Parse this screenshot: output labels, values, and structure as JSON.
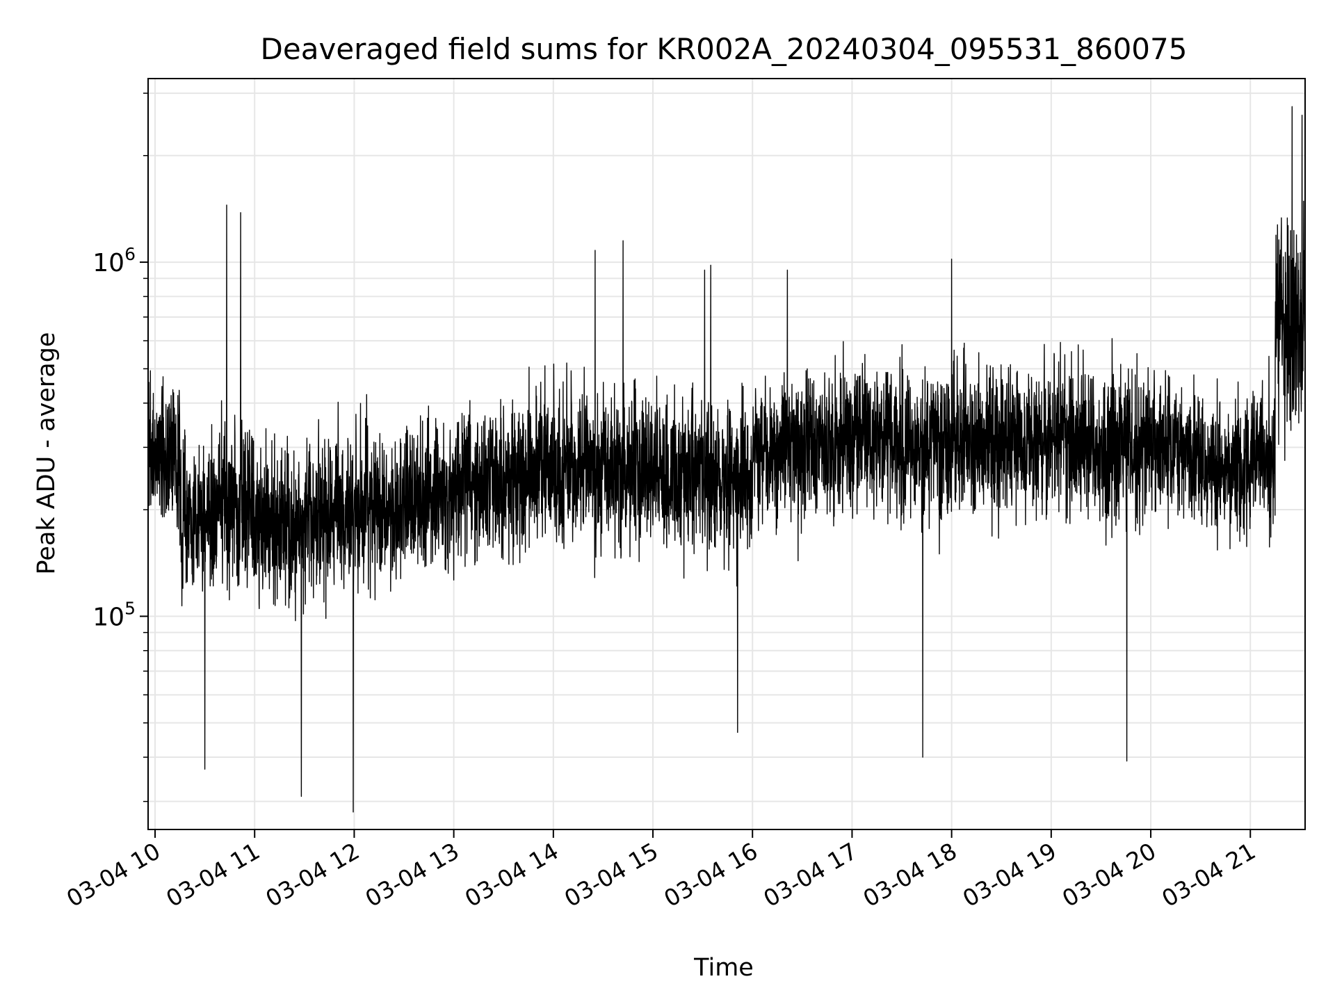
{
  "chart_data": {
    "type": "line",
    "title": "Deaveraged field sums for KR002A_20240304_095531_860075",
    "xlabel": "Time",
    "ylabel": "Peak ADU - average",
    "x_ticks": [
      "03-04 10",
      "03-04 11",
      "03-04 12",
      "03-04 13",
      "03-04 14",
      "03-04 15",
      "03-04 16",
      "03-04 17",
      "03-04 18",
      "03-04 19",
      "03-04 20",
      "03-04 21"
    ],
    "x_tick_hours": [
      10,
      11,
      12,
      13,
      14,
      15,
      16,
      17,
      18,
      19,
      20,
      21
    ],
    "xlim_hours": [
      9.93,
      21.55
    ],
    "y_scale": "log",
    "ylim": [
      25000,
      3300000
    ],
    "y_ticks": [
      {
        "value": 100000,
        "base": "10",
        "exp": "5"
      },
      {
        "value": 1000000,
        "base": "10",
        "exp": "6"
      }
    ],
    "grid": true,
    "line_color": "#000000",
    "grid_color": "#e6e6e6",
    "series": [
      {
        "values_by_window": [
          {
            "hour_start": 9.93,
            "hour_end": 10.25,
            "median": 280000,
            "low": 130000,
            "high": 700000
          },
          {
            "hour_start": 10.25,
            "hour_end": 10.6,
            "median": 190000,
            "low": 90000,
            "high": 460000
          },
          {
            "hour_start": 10.6,
            "hour_end": 11.0,
            "median": 210000,
            "low": 80000,
            "high": 520000
          },
          {
            "hour_start": 11.0,
            "hour_end": 11.5,
            "median": 180000,
            "low": 75000,
            "high": 420000
          },
          {
            "hour_start": 11.5,
            "hour_end": 12.0,
            "median": 190000,
            "low": 80000,
            "high": 450000
          },
          {
            "hour_start": 12.0,
            "hour_end": 12.5,
            "median": 200000,
            "low": 90000,
            "high": 470000
          },
          {
            "hour_start": 12.5,
            "hour_end": 13.0,
            "median": 215000,
            "low": 90000,
            "high": 480000
          },
          {
            "hour_start": 13.0,
            "hour_end": 13.5,
            "median": 240000,
            "low": 100000,
            "high": 520000
          },
          {
            "hour_start": 13.5,
            "hour_end": 14.0,
            "median": 250000,
            "low": 100000,
            "high": 560000
          },
          {
            "hour_start": 14.0,
            "hour_end": 14.5,
            "median": 255000,
            "low": 105000,
            "high": 580000
          },
          {
            "hour_start": 14.5,
            "hour_end": 15.0,
            "median": 260000,
            "low": 105000,
            "high": 600000
          },
          {
            "hour_start": 15.0,
            "hour_end": 15.5,
            "median": 250000,
            "low": 100000,
            "high": 580000
          },
          {
            "hour_start": 15.5,
            "hour_end": 16.0,
            "median": 245000,
            "low": 100000,
            "high": 570000
          },
          {
            "hour_start": 16.0,
            "hour_end": 16.5,
            "median": 300000,
            "low": 130000,
            "high": 680000
          },
          {
            "hour_start": 16.5,
            "hour_end": 17.0,
            "median": 310000,
            "low": 130000,
            "high": 680000
          },
          {
            "hour_start": 17.0,
            "hour_end": 17.5,
            "median": 310000,
            "low": 130000,
            "high": 680000
          },
          {
            "hour_start": 17.5,
            "hour_end": 18.0,
            "median": 300000,
            "low": 125000,
            "high": 680000
          },
          {
            "hour_start": 18.0,
            "hour_end": 18.5,
            "median": 310000,
            "low": 130000,
            "high": 700000
          },
          {
            "hour_start": 18.5,
            "hour_end": 19.0,
            "median": 315000,
            "low": 130000,
            "high": 700000
          },
          {
            "hour_start": 19.0,
            "hour_end": 19.5,
            "median": 315000,
            "low": 130000,
            "high": 700000
          },
          {
            "hour_start": 19.5,
            "hour_end": 20.0,
            "median": 310000,
            "low": 130000,
            "high": 690000
          },
          {
            "hour_start": 20.0,
            "hour_end": 20.4,
            "median": 300000,
            "low": 130000,
            "high": 660000
          },
          {
            "hour_start": 20.4,
            "hour_end": 21.25,
            "median": 270000,
            "low": 120000,
            "high": 600000
          },
          {
            "hour_start": 21.25,
            "hour_end": 21.55,
            "median": 700000,
            "low": 240000,
            "high": 2800000
          }
        ],
        "peaks": [
          {
            "hour": 10.72,
            "value": 1450000
          },
          {
            "hour": 10.86,
            "value": 1380000
          },
          {
            "hour": 14.42,
            "value": 1080000
          },
          {
            "hour": 14.7,
            "value": 1150000
          },
          {
            "hour": 15.52,
            "value": 950000
          },
          {
            "hour": 15.58,
            "value": 980000
          },
          {
            "hour": 16.35,
            "value": 950000
          },
          {
            "hour": 18.0,
            "value": 1020000
          },
          {
            "hour": 21.42,
            "value": 2750000
          },
          {
            "hour": 21.52,
            "value": 2600000
          }
        ],
        "dips": [
          {
            "hour": 10.5,
            "value": 37000
          },
          {
            "hour": 11.47,
            "value": 31000
          },
          {
            "hour": 11.99,
            "value": 28000
          },
          {
            "hour": 15.85,
            "value": 47000
          },
          {
            "hour": 17.71,
            "value": 40000
          },
          {
            "hour": 19.76,
            "value": 39000
          }
        ]
      }
    ]
  }
}
